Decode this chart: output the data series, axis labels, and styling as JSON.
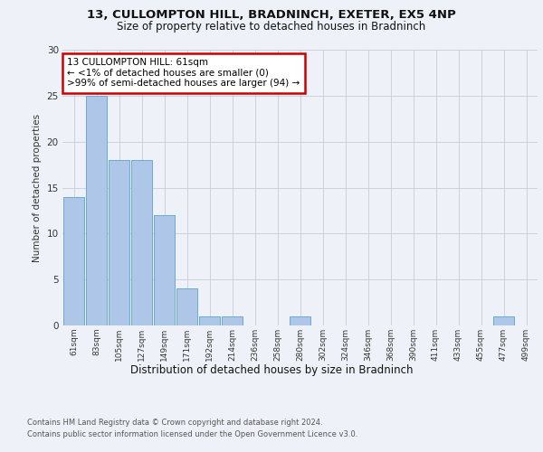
{
  "title_line1": "13, CULLOMPTON HILL, BRADNINCH, EXETER, EX5 4NP",
  "title_line2": "Size of property relative to detached houses in Bradninch",
  "xlabel": "Distribution of detached houses by size in Bradninch",
  "ylabel": "Number of detached properties",
  "categories": [
    "61sqm",
    "83sqm",
    "105sqm",
    "127sqm",
    "149sqm",
    "171sqm",
    "192sqm",
    "214sqm",
    "236sqm",
    "258sqm",
    "280sqm",
    "302sqm",
    "324sqm",
    "346sqm",
    "368sqm",
    "390sqm",
    "411sqm",
    "433sqm",
    "455sqm",
    "477sqm",
    "499sqm"
  ],
  "values": [
    14,
    25,
    18,
    18,
    12,
    4,
    1,
    1,
    0,
    0,
    1,
    0,
    0,
    0,
    0,
    0,
    0,
    0,
    0,
    1,
    0
  ],
  "bar_color": "#aec6e8",
  "bar_edge_color": "#6aaad4",
  "annotation_text": "13 CULLOMPTON HILL: 61sqm\n← <1% of detached houses are smaller (0)\n>99% of semi-detached houses are larger (94) →",
  "annotation_box_facecolor": "#ffffff",
  "annotation_box_edgecolor": "#cc0000",
  "ylim": [
    0,
    30
  ],
  "yticks": [
    0,
    5,
    10,
    15,
    20,
    25,
    30
  ],
  "footer_line1": "Contains HM Land Registry data © Crown copyright and database right 2024.",
  "footer_line2": "Contains public sector information licensed under the Open Government Licence v3.0.",
  "bg_color": "#eef2f8"
}
